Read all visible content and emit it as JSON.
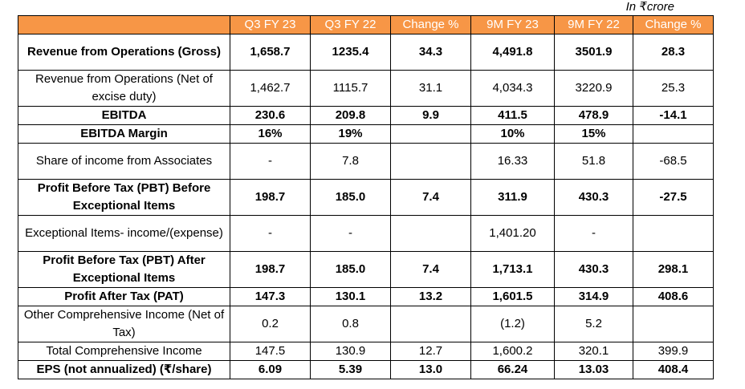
{
  "unit_note": "In ₹crore",
  "table": {
    "headers": [
      "",
      "Q3 FY 23",
      "Q3 FY 22",
      "Change %",
      "9M FY 23",
      "9M FY 22",
      "Change %"
    ],
    "rows": [
      {
        "label": "Revenue from Operations (Gross)",
        "cells": [
          "1,658.7",
          "1235.4",
          "34.3",
          "4,491.8",
          "3501.9",
          "28.3"
        ],
        "bold": true
      },
      {
        "label": "Revenue from Operations (Net of excise duty)",
        "cells": [
          "1,462.7",
          "1115.7",
          "31.1",
          "4,034.3",
          "3220.9",
          "25.3"
        ],
        "bold": false
      },
      {
        "label": "EBITDA",
        "cells": [
          "230.6",
          "209.8",
          "9.9",
          "411.5",
          "478.9",
          "-14.1"
        ],
        "bold": true
      },
      {
        "label": "EBITDA Margin",
        "cells": [
          "16%",
          "19%",
          "",
          "10%",
          "15%",
          ""
        ],
        "bold": true
      },
      {
        "label": "Share of income from Associates",
        "cells": [
          "-",
          "7.8",
          "",
          "16.33",
          "51.8",
          "-68.5"
        ],
        "bold": false
      },
      {
        "label": "Profit Before Tax (PBT) Before Exceptional Items",
        "cells": [
          "198.7",
          "185.0",
          "7.4",
          "311.9",
          "430.3",
          "-27.5"
        ],
        "bold": true
      },
      {
        "label": "Exceptional Items- income/(expense)",
        "cells": [
          "-",
          "-",
          "",
          "1,401.20",
          "-",
          ""
        ],
        "bold": false
      },
      {
        "label": "Profit Before Tax (PBT) After Exceptional Items",
        "cells": [
          "198.7",
          "185.0",
          "7.4",
          "1,713.1",
          "430.3",
          "298.1"
        ],
        "bold": true
      },
      {
        "label": "Profit After Tax (PAT)",
        "cells": [
          "147.3",
          "130.1",
          "13.2",
          "1,601.5",
          "314.9",
          "408.6"
        ],
        "bold": true
      },
      {
        "label": "Other Comprehensive Income (Net of Tax)",
        "cells": [
          "0.2",
          "0.8",
          "",
          "(1.2)",
          "5.2",
          ""
        ],
        "bold": false
      },
      {
        "label": "Total Comprehensive Income",
        "cells": [
          "147.5",
          "130.9",
          "12.7",
          "1,600.2",
          "320.1",
          "399.9"
        ],
        "bold": false
      },
      {
        "label": "EPS (not annualized) (₹/share)",
        "cells": [
          "6.09",
          "5.39",
          "13.0",
          "66.24",
          "13.03",
          "408.4"
        ],
        "bold": true
      }
    ]
  },
  "colors": {
    "header_background": "#f79646",
    "header_text": "#ffffff"
  }
}
